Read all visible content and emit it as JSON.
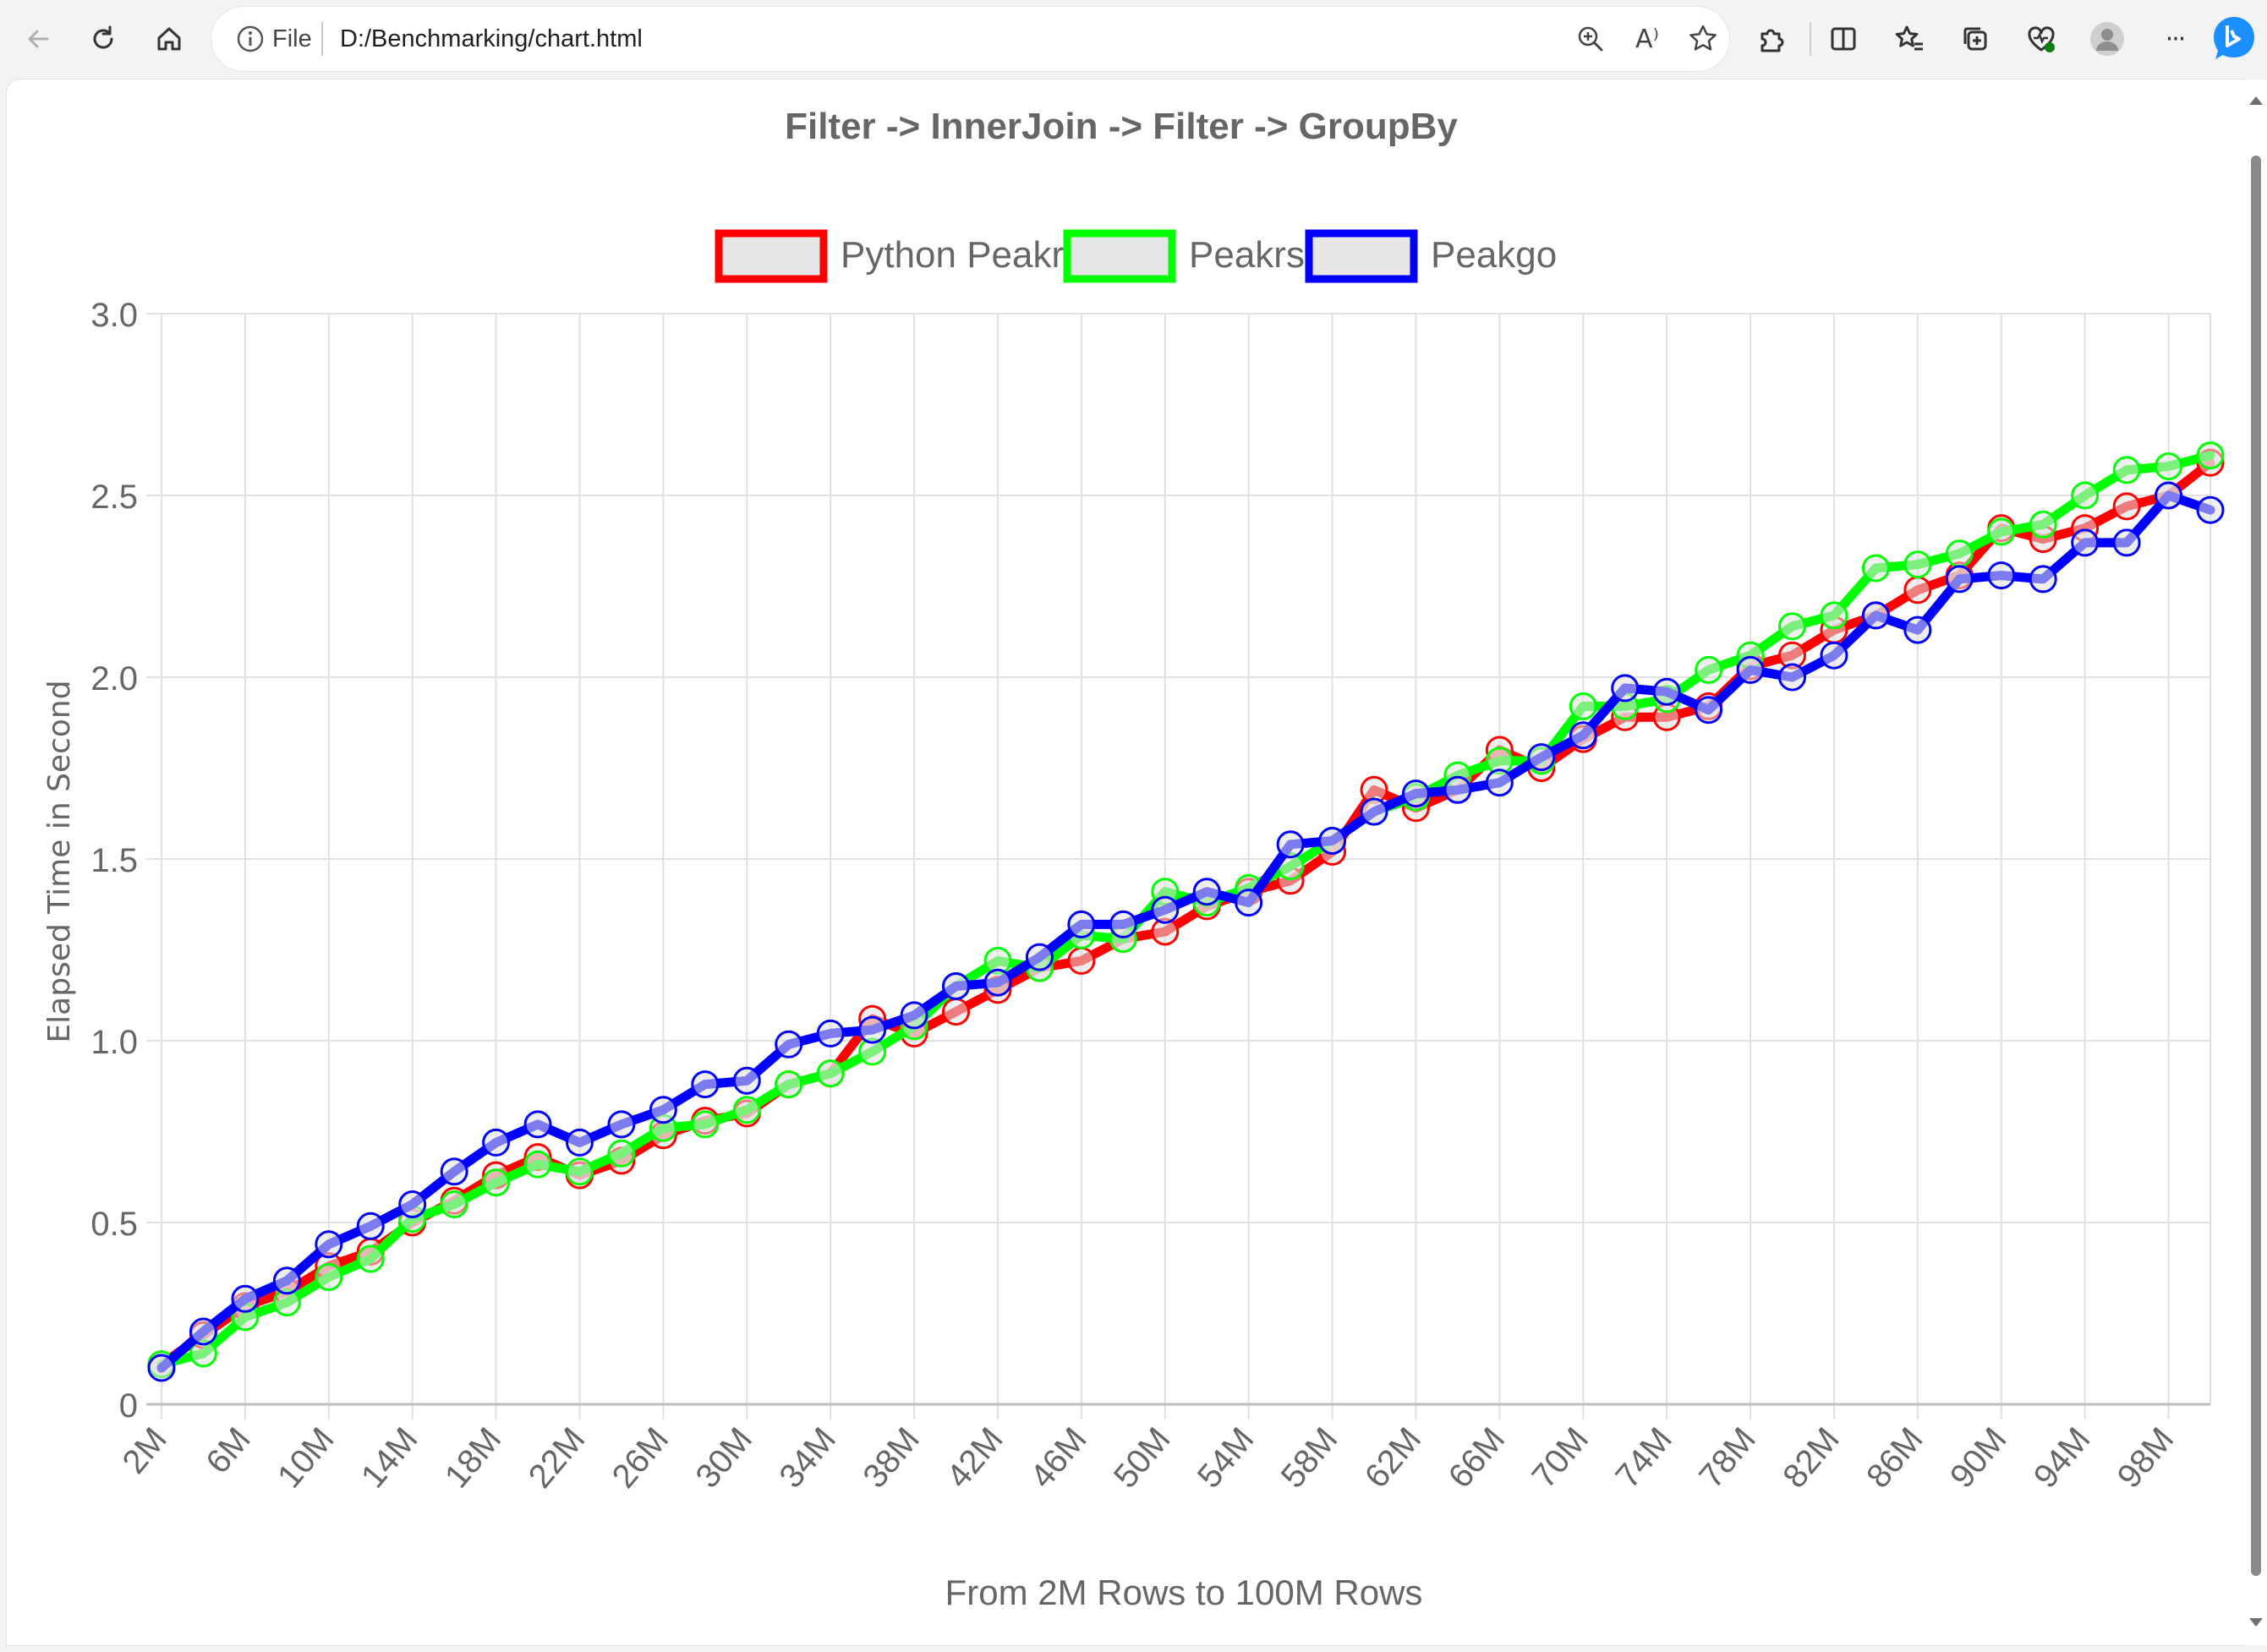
{
  "browser": {
    "address_file_label": "File",
    "url": "D:/Benchmarking/chart.html",
    "toolbar_icons": [
      "back-icon",
      "refresh-icon",
      "home-icon",
      "info-icon",
      "zoom-icon",
      "read-aloud-icon",
      "favorite-star-icon",
      "extensions-icon",
      "split-screen-icon",
      "favorites-icon",
      "collections-icon",
      "browser-essentials-icon",
      "profile-avatar",
      "more-icon",
      "bing-copilot-icon"
    ],
    "read_aloud_glyph": "A⁾",
    "more_glyph": "···"
  },
  "chart_data": {
    "type": "line",
    "title": "Filter -> InnerJoin -> Filter -> GroupBy",
    "xlabel": "From 2M Rows to 100M Rows",
    "ylabel": "Elapsed Time in Second",
    "ylim": [
      0,
      3.0
    ],
    "y_ticks": [
      "0",
      "0.5",
      "1.0",
      "1.5",
      "2.0",
      "2.5",
      "3.0"
    ],
    "grid": true,
    "legend_position": "top-center",
    "x": [
      2,
      4,
      6,
      8,
      10,
      12,
      14,
      16,
      18,
      20,
      22,
      24,
      26,
      28,
      30,
      32,
      34,
      36,
      38,
      40,
      42,
      44,
      46,
      48,
      50,
      52,
      54,
      56,
      58,
      60,
      62,
      64,
      66,
      68,
      70,
      72,
      74,
      76,
      78,
      80,
      82,
      84,
      86,
      88,
      90,
      92,
      94,
      96,
      98,
      100
    ],
    "x_tick_labels": [
      "2M",
      "6M",
      "10M",
      "14M",
      "18M",
      "22M",
      "26M",
      "30M",
      "34M",
      "38M",
      "42M",
      "46M",
      "50M",
      "54M",
      "58M",
      "62M",
      "66M",
      "70M",
      "74M",
      "78M",
      "82M",
      "86M",
      "90M",
      "94M",
      "98M"
    ],
    "series": [
      {
        "name": "Python Peakrs",
        "color": "#ff0000",
        "values": [
          0.11,
          0.19,
          0.27,
          0.31,
          0.38,
          0.42,
          0.5,
          0.56,
          0.63,
          0.68,
          0.63,
          0.67,
          0.74,
          0.78,
          0.8,
          0.88,
          0.91,
          1.06,
          1.02,
          1.08,
          1.14,
          1.2,
          1.22,
          1.28,
          1.3,
          1.37,
          1.41,
          1.44,
          1.52,
          1.69,
          1.64,
          1.69,
          1.8,
          1.75,
          1.83,
          1.89,
          1.89,
          1.92,
          2.03,
          2.06,
          2.13,
          2.17,
          2.24,
          2.28,
          2.41,
          2.38,
          2.41,
          2.47,
          2.5,
          2.59
        ]
      },
      {
        "name": "Peakrs",
        "color": "#00ff00",
        "values": [
          0.11,
          0.14,
          0.24,
          0.28,
          0.35,
          0.4,
          0.51,
          0.55,
          0.61,
          0.66,
          0.64,
          0.69,
          0.76,
          0.77,
          0.81,
          0.88,
          0.91,
          0.97,
          1.04,
          1.15,
          1.22,
          1.2,
          1.29,
          1.28,
          1.41,
          1.38,
          1.42,
          1.48,
          1.55,
          1.63,
          1.67,
          1.73,
          1.77,
          1.77,
          1.92,
          1.92,
          1.94,
          2.02,
          2.06,
          2.14,
          2.17,
          2.3,
          2.31,
          2.34,
          2.4,
          2.42,
          2.5,
          2.57,
          2.58,
          2.61
        ]
      },
      {
        "name": "Peakgo",
        "color": "#0000ff",
        "values": [
          0.1,
          0.2,
          0.29,
          0.34,
          0.44,
          0.49,
          0.55,
          0.64,
          0.72,
          0.77,
          0.72,
          0.77,
          0.81,
          0.88,
          0.89,
          0.99,
          1.02,
          1.03,
          1.07,
          1.15,
          1.16,
          1.23,
          1.32,
          1.32,
          1.36,
          1.41,
          1.38,
          1.54,
          1.55,
          1.63,
          1.68,
          1.69,
          1.71,
          1.78,
          1.84,
          1.97,
          1.96,
          1.91,
          2.02,
          2.0,
          2.06,
          2.17,
          2.13,
          2.27,
          2.28,
          2.27,
          2.37,
          2.37,
          2.5,
          2.46
        ]
      }
    ]
  }
}
